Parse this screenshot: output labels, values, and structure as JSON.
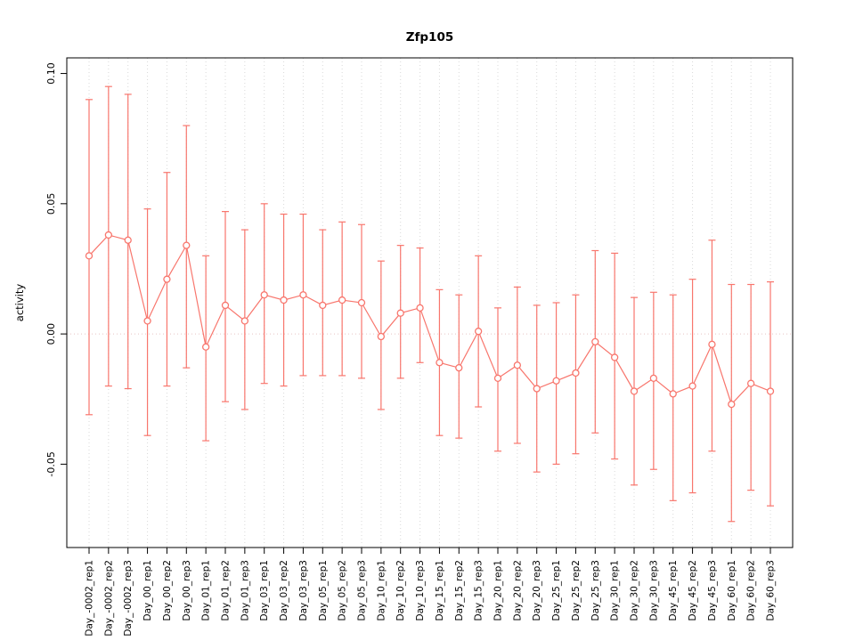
{
  "figure": {
    "title": "Zfp105",
    "ylabel": "activity"
  },
  "chart_data": {
    "type": "line",
    "title": "Zfp105",
    "xlabel": "",
    "ylabel": "activity",
    "ylim": [
      -0.082,
      0.106
    ],
    "yticks": [
      -0.05,
      0.0,
      0.05,
      0.1
    ],
    "ytick_format_decimals": 2,
    "grid": "vertical-dotted-per-category",
    "zero_line": "dotted-horizontal-at-0",
    "legend_position": "none",
    "point_style": "open-circle",
    "error_bars": true,
    "series_color": "#f8766d",
    "grid_color": "#d9d9d9",
    "zero_line_color": "#e6c3c3",
    "axis_color": "#000000",
    "categories": [
      "Day_-0002_rep1",
      "Day_-0002_rep2",
      "Day_-0002_rep3",
      "Day_00_rep1",
      "Day_00_rep2",
      "Day_00_rep3",
      "Day_01_rep1",
      "Day_01_rep2",
      "Day_01_rep3",
      "Day_03_rep1",
      "Day_03_rep2",
      "Day_03_rep3",
      "Day_05_rep1",
      "Day_05_rep2",
      "Day_05_rep3",
      "Day_10_rep1",
      "Day_10_rep2",
      "Day_10_rep3",
      "Day_15_rep1",
      "Day_15_rep2",
      "Day_15_rep3",
      "Day_20_rep1",
      "Day_20_rep2",
      "Day_20_rep3",
      "Day_25_rep1",
      "Day_25_rep2",
      "Day_25_rep3",
      "Day_30_rep1",
      "Day_30_rep2",
      "Day_30_rep3",
      "Day_45_rep1",
      "Day_45_rep2",
      "Day_45_rep3",
      "Day_60_rep1",
      "Day_60_rep2",
      "Day_60_rep3"
    ],
    "series": [
      {
        "name": "activity",
        "values": [
          0.03,
          0.038,
          0.036,
          0.005,
          0.021,
          0.034,
          -0.005,
          0.011,
          0.005,
          0.015,
          0.013,
          0.015,
          0.011,
          0.013,
          0.012,
          -0.001,
          0.008,
          0.01,
          -0.011,
          -0.013,
          0.001,
          -0.017,
          -0.012,
          -0.021,
          -0.018,
          -0.015,
          -0.003,
          -0.009,
          -0.022,
          -0.017,
          -0.023,
          -0.02,
          -0.004,
          -0.027,
          -0.019,
          -0.022
        ],
        "upper": [
          0.09,
          0.095,
          0.092,
          0.048,
          0.062,
          0.08,
          0.03,
          0.047,
          0.04,
          0.05,
          0.046,
          0.046,
          0.04,
          0.043,
          0.042,
          0.028,
          0.034,
          0.033,
          0.017,
          0.015,
          0.03,
          0.01,
          0.018,
          0.011,
          0.012,
          0.015,
          0.032,
          0.031,
          0.014,
          0.016,
          0.015,
          0.021,
          0.036,
          0.019,
          0.019,
          0.02
        ],
        "lower": [
          -0.031,
          -0.02,
          -0.021,
          -0.039,
          -0.02,
          -0.013,
          -0.041,
          -0.026,
          -0.029,
          -0.019,
          -0.02,
          -0.016,
          -0.016,
          -0.016,
          -0.017,
          -0.029,
          -0.017,
          -0.011,
          -0.039,
          -0.04,
          -0.028,
          -0.045,
          -0.042,
          -0.053,
          -0.05,
          -0.046,
          -0.038,
          -0.048,
          -0.058,
          -0.052,
          -0.064,
          -0.061,
          -0.045,
          -0.072,
          -0.06,
          -0.066
        ]
      }
    ]
  }
}
